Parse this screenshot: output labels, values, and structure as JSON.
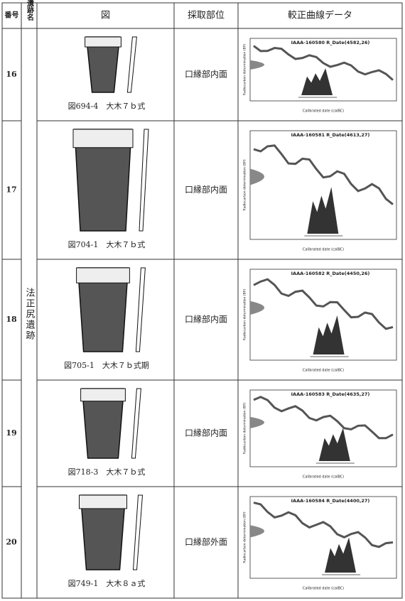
{
  "header": [
    "番号",
    "遺跡名",
    "図",
    "採取部位",
    "較正曲線データ"
  ],
  "site": "法正尻遺跡",
  "rows": [
    {
      "no": "16",
      "caption": "図694-4　大木７ｂ式",
      "part": "口縁部内面",
      "chart": {
        "title": "IAAA-160580 R_Date(4582,26)",
        "x_label": "Calibrated date (calBC)",
        "y_label": "Radiocarbon determination (BP)"
      }
    },
    {
      "no": "17",
      "caption": "図704-1　大木７ｂ式",
      "part": "口縁部内面",
      "chart": {
        "title": "IAAA-160581 R_Date(4613,27)",
        "x_label": "Calibrated date (calBC)",
        "y_label": "Radiocarbon determination (BP)"
      }
    },
    {
      "no": "18",
      "caption": "図705-1　大木７ｂ式期",
      "part": "口縁部内面",
      "chart": {
        "title": "IAAA-160582 R_Date(4450,26)",
        "x_label": "Calibrated date (calBC)",
        "y_label": "Radiocarbon determination (BP)"
      }
    },
    {
      "no": "19",
      "caption": "図718-3　大木７ｂ式",
      "part": "口縁部内面",
      "chart": {
        "title": "IAAA-160583 R_Date(4635,27)",
        "x_label": "Calibrated date (calBC)",
        "y_label": "Radiocarbon determination (BP)"
      }
    },
    {
      "no": "20",
      "caption": "図749-1　大木８ａ式",
      "part": "口縁部外面",
      "chart": {
        "title": "IAAA-160584 R_Date(4400,27)",
        "x_label": "Calibrated date (calBC)",
        "y_label": "Radiocarbon determination (BP)"
      }
    }
  ]
}
